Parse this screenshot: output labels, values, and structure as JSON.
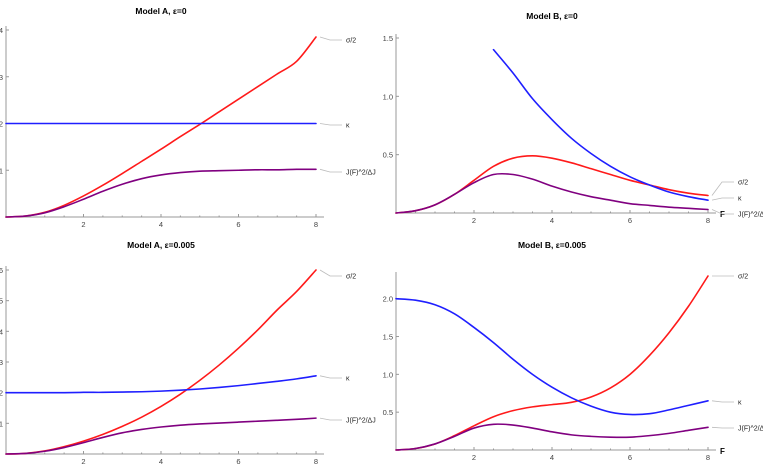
{
  "colors": {
    "sigma": "#ff1a1a",
    "kappa": "#1f1fff",
    "J": "#800080"
  },
  "chart_data": [
    {
      "type": "line",
      "title": "Model A, ε=0",
      "xlabel": "",
      "xlim": [
        0,
        8
      ],
      "ylim": [
        0,
        4
      ],
      "xticks": [
        "2",
        "4",
        "6",
        "8"
      ],
      "yticks": [
        "1",
        "2",
        "3",
        "4"
      ],
      "x": [
        0,
        0.5,
        1,
        1.5,
        2,
        2.5,
        3,
        3.5,
        4,
        4.5,
        5,
        5.5,
        6,
        6.5,
        7,
        7.5,
        8
      ],
      "series": [
        {
          "name": "σ/2",
          "color_key": "sigma",
          "values": [
            0,
            0.02,
            0.1,
            0.25,
            0.45,
            0.68,
            0.93,
            1.19,
            1.45,
            1.72,
            1.98,
            2.25,
            2.52,
            2.79,
            3.06,
            3.33,
            3.85
          ]
        },
        {
          "name": "κ",
          "color_key": "kappa",
          "values": [
            2,
            2,
            2,
            2,
            2,
            2,
            2,
            2,
            2,
            2,
            2,
            2,
            2,
            2,
            2,
            2,
            2
          ]
        },
        {
          "name": "J(F)^2/ΔJ",
          "color_key": "J",
          "values": [
            0,
            0.02,
            0.09,
            0.22,
            0.38,
            0.55,
            0.7,
            0.82,
            0.9,
            0.95,
            0.98,
            0.99,
            1.0,
            1.01,
            1.01,
            1.02,
            1.02
          ]
        }
      ]
    },
    {
      "type": "line",
      "title": "Model B, ε=0",
      "xlabel": "F",
      "xlim": [
        0,
        8
      ],
      "ylim": [
        0,
        1.5
      ],
      "xticks": [
        "2",
        "4",
        "6",
        "8"
      ],
      "yticks": [
        "0.5",
        "1.0",
        "1.5"
      ],
      "x": [
        0,
        0.5,
        1,
        1.5,
        2,
        2.5,
        3,
        3.5,
        4,
        4.5,
        5,
        5.5,
        6,
        6.5,
        7,
        7.5,
        8
      ],
      "series": [
        {
          "name": "σ/2",
          "color_key": "sigma",
          "values": [
            0,
            0.02,
            0.07,
            0.16,
            0.28,
            0.4,
            0.47,
            0.49,
            0.47,
            0.43,
            0.38,
            0.33,
            0.28,
            0.24,
            0.2,
            0.17,
            0.15
          ]
        },
        {
          "name": "κ",
          "color_key": "kappa",
          "values": [
            null,
            null,
            null,
            null,
            null,
            1.4,
            1.2,
            0.98,
            0.8,
            0.64,
            0.51,
            0.4,
            0.31,
            0.24,
            0.18,
            0.14,
            0.11
          ]
        },
        {
          "name": "J(F)^2/ΔJ",
          "color_key": "J",
          "values": [
            0,
            0.02,
            0.07,
            0.16,
            0.26,
            0.33,
            0.33,
            0.29,
            0.23,
            0.18,
            0.14,
            0.11,
            0.08,
            0.065,
            0.05,
            0.04,
            0.03
          ]
        }
      ]
    },
    {
      "type": "line",
      "title": "Model A, ε=0.005",
      "xlabel": "",
      "xlim": [
        0,
        8
      ],
      "ylim": [
        0,
        6
      ],
      "xticks": [
        "2",
        "4",
        "6",
        "8"
      ],
      "yticks": [
        "1",
        "2",
        "3",
        "4",
        "5",
        "6"
      ],
      "x": [
        0,
        0.5,
        1,
        1.5,
        2,
        2.5,
        3,
        3.5,
        4,
        4.5,
        5,
        5.5,
        6,
        6.5,
        7,
        7.5,
        8
      ],
      "series": [
        {
          "name": "σ/2",
          "color_key": "sigma",
          "values": [
            0,
            0.02,
            0.1,
            0.24,
            0.42,
            0.64,
            0.9,
            1.2,
            1.55,
            1.95,
            2.4,
            2.9,
            3.45,
            4.05,
            4.7,
            5.3,
            6.0
          ]
        },
        {
          "name": "κ",
          "color_key": "kappa",
          "values": [
            2,
            2,
            2,
            2,
            2.01,
            2.01,
            2.02,
            2.03,
            2.05,
            2.08,
            2.12,
            2.17,
            2.23,
            2.3,
            2.37,
            2.45,
            2.55
          ]
        },
        {
          "name": "J(F)^2/ΔJ",
          "color_key": "J",
          "values": [
            0,
            0.02,
            0.09,
            0.21,
            0.37,
            0.54,
            0.69,
            0.8,
            0.88,
            0.94,
            0.98,
            1.01,
            1.04,
            1.07,
            1.1,
            1.13,
            1.17
          ]
        }
      ]
    },
    {
      "type": "line",
      "title": "Model B, ε=0.005",
      "xlabel": "F",
      "xlim": [
        0,
        8
      ],
      "ylim": [
        0,
        2.3
      ],
      "xticks": [
        "2",
        "4",
        "6",
        "8"
      ],
      "yticks": [
        "0.5",
        "1.0",
        "1.5",
        "2.0"
      ],
      "x": [
        0,
        0.5,
        1,
        1.5,
        2,
        2.5,
        3,
        3.5,
        4,
        4.5,
        5,
        5.5,
        6,
        6.5,
        7,
        7.5,
        8
      ],
      "series": [
        {
          "name": "σ/2",
          "color_key": "sigma",
          "values": [
            0,
            0.02,
            0.08,
            0.19,
            0.32,
            0.44,
            0.52,
            0.57,
            0.6,
            0.63,
            0.7,
            0.82,
            1.0,
            1.25,
            1.55,
            1.9,
            2.3
          ]
        },
        {
          "name": "κ",
          "color_key": "kappa",
          "values": [
            2.0,
            1.98,
            1.92,
            1.8,
            1.62,
            1.42,
            1.2,
            1.0,
            0.83,
            0.69,
            0.58,
            0.5,
            0.47,
            0.48,
            0.53,
            0.59,
            0.65
          ]
        },
        {
          "name": "J(F)^2/ΔJ",
          "color_key": "J",
          "values": [
            0,
            0.02,
            0.08,
            0.18,
            0.29,
            0.34,
            0.33,
            0.29,
            0.24,
            0.2,
            0.18,
            0.17,
            0.17,
            0.19,
            0.22,
            0.26,
            0.3
          ]
        }
      ]
    }
  ]
}
